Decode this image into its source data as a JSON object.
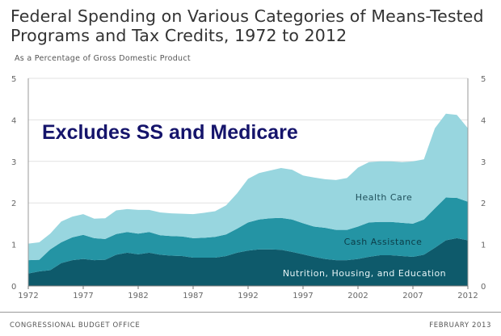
{
  "header": {
    "title_line1": "Federal Spending on Various Categories of Means-Tested",
    "title_line2": "Programs and Tax Credits, 1972 to 2012",
    "subtitle": "As a Percentage of Gross Domestic Product"
  },
  "annotation": "Excludes  SS and Medicare",
  "footer": {
    "source": "CONGRESSIONAL BUDGET OFFICE",
    "date": "FEBRUARY 2013"
  },
  "colors": {
    "nutrition": "#0e5a6b",
    "cash": "#2494a4",
    "health": "#98d6df",
    "annotation": "#15146b"
  },
  "chart_data": {
    "type": "area",
    "stacked": true,
    "x": [
      1972,
      1973,
      1974,
      1975,
      1976,
      1977,
      1978,
      1979,
      1980,
      1981,
      1982,
      1983,
      1984,
      1985,
      1986,
      1987,
      1988,
      1989,
      1990,
      1991,
      1992,
      1993,
      1994,
      1995,
      1996,
      1997,
      1998,
      1999,
      2000,
      2001,
      2002,
      2003,
      2004,
      2005,
      2006,
      2007,
      2008,
      2009,
      2010,
      2011,
      2012
    ],
    "xticks": [
      "1972",
      "1977",
      "1982",
      "1987",
      "1992",
      "1997",
      "2002",
      "2007",
      "2012"
    ],
    "ylim": [
      0,
      5
    ],
    "yticks": [
      "0",
      "1",
      "2",
      "3",
      "4",
      "5"
    ],
    "series": [
      {
        "name": "Nutrition, Housing, and Education",
        "values": [
          0.3,
          0.35,
          0.38,
          0.55,
          0.62,
          0.65,
          0.62,
          0.63,
          0.75,
          0.8,
          0.76,
          0.8,
          0.75,
          0.73,
          0.72,
          0.68,
          0.68,
          0.68,
          0.72,
          0.8,
          0.85,
          0.88,
          0.88,
          0.87,
          0.82,
          0.76,
          0.7,
          0.65,
          0.62,
          0.62,
          0.65,
          0.7,
          0.74,
          0.74,
          0.72,
          0.7,
          0.75,
          0.92,
          1.1,
          1.15,
          1.1
        ]
      },
      {
        "name": "Cash Assistance",
        "values": [
          0.32,
          0.28,
          0.5,
          0.5,
          0.55,
          0.58,
          0.53,
          0.5,
          0.5,
          0.5,
          0.5,
          0.5,
          0.47,
          0.47,
          0.47,
          0.47,
          0.48,
          0.5,
          0.52,
          0.58,
          0.68,
          0.72,
          0.75,
          0.77,
          0.78,
          0.75,
          0.73,
          0.75,
          0.73,
          0.73,
          0.78,
          0.83,
          0.8,
          0.8,
          0.8,
          0.8,
          0.85,
          0.95,
          1.03,
          0.97,
          0.93
        ]
      },
      {
        "name": "Health Care",
        "values": [
          0.4,
          0.42,
          0.38,
          0.5,
          0.5,
          0.5,
          0.47,
          0.5,
          0.57,
          0.55,
          0.57,
          0.53,
          0.55,
          0.55,
          0.55,
          0.58,
          0.6,
          0.62,
          0.7,
          0.85,
          1.05,
          1.12,
          1.15,
          1.2,
          1.2,
          1.15,
          1.18,
          1.17,
          1.2,
          1.25,
          1.42,
          1.45,
          1.46,
          1.46,
          1.46,
          1.5,
          1.45,
          1.93,
          2.02,
          2.0,
          1.77
        ]
      }
    ]
  }
}
